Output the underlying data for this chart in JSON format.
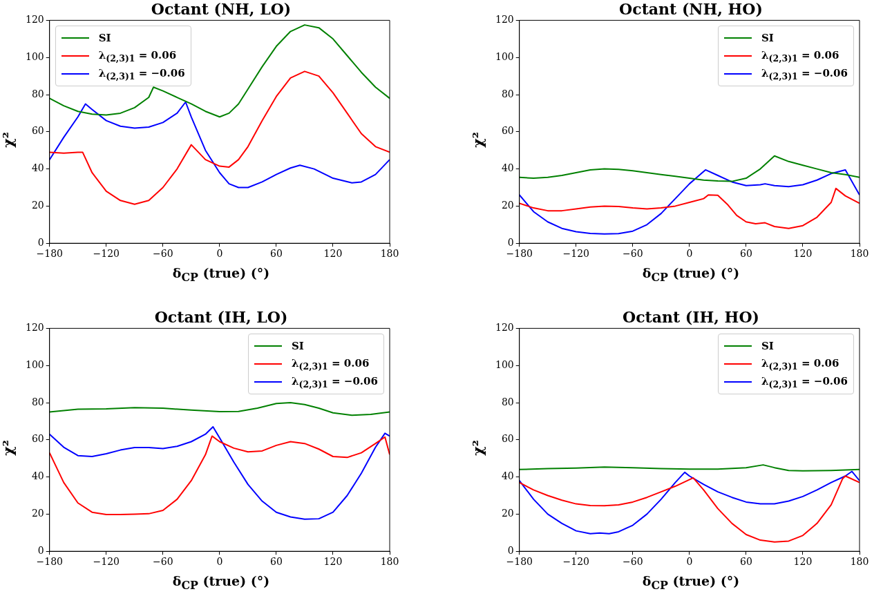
{
  "chart_data": [
    {
      "type": "line",
      "title": "Octant (NH, LO)",
      "xlabel": "δ$_{CP}$ (true) (°)",
      "ylabel": "χ²",
      "xlim": [
        -180,
        180
      ],
      "ylim": [
        0,
        120
      ],
      "xticks": [
        -180,
        -120,
        -60,
        0,
        60,
        120,
        180
      ],
      "yticks": [
        0,
        20,
        40,
        60,
        80,
        100,
        120
      ],
      "grid": false,
      "legend": "top left",
      "series": [
        {
          "name": "SI",
          "color": "#008000",
          "x": [
            -180,
            -165,
            -150,
            -135,
            -120,
            -105,
            -90,
            -75,
            -70,
            -60,
            -45,
            -30,
            -15,
            0,
            10,
            20,
            30,
            45,
            60,
            75,
            90,
            105,
            120,
            135,
            150,
            165,
            180
          ],
          "values": [
            78,
            74,
            71,
            69.5,
            69,
            70,
            73,
            78.5,
            84,
            82,
            78.5,
            75,
            71,
            68,
            70,
            75,
            83,
            95,
            106,
            114,
            117.5,
            116,
            110,
            101,
            92,
            84,
            78
          ]
        },
        {
          "name": "λ$_{(2,3)1}$ = 0.06",
          "color": "#ff0000",
          "x": [
            -180,
            -165,
            -150,
            -145,
            -135,
            -120,
            -105,
            -90,
            -75,
            -60,
            -45,
            -30,
            -15,
            0,
            10,
            20,
            30,
            45,
            60,
            75,
            90,
            105,
            120,
            135,
            150,
            165,
            180
          ],
          "values": [
            49,
            48.5,
            49,
            49,
            38,
            28,
            23,
            21,
            23,
            30,
            40,
            53,
            45,
            41.5,
            41,
            45,
            52,
            66,
            79,
            89,
            92.5,
            90,
            81,
            70,
            59,
            52,
            49
          ]
        },
        {
          "name": "λ$_{(2,3)1}$ = −0.06",
          "color": "#0000ff",
          "x": [
            -180,
            -165,
            -150,
            -142,
            -135,
            -120,
            -105,
            -90,
            -75,
            -60,
            -45,
            -36,
            -30,
            -15,
            0,
            10,
            20,
            30,
            45,
            60,
            75,
            85,
            100,
            120,
            140,
            150,
            165,
            180
          ],
          "values": [
            45,
            57,
            68,
            75,
            72,
            66,
            63,
            62,
            62.5,
            65,
            70,
            76,
            68,
            50,
            38,
            32,
            30,
            30,
            33,
            37,
            40.5,
            42,
            40,
            35,
            32.5,
            33,
            37,
            45
          ]
        }
      ]
    },
    {
      "type": "line",
      "title": "Octant (NH, HO)",
      "xlabel": "δ$_{CP}$ (true) (°)",
      "ylabel": "χ²",
      "xlim": [
        -180,
        180
      ],
      "ylim": [
        0,
        120
      ],
      "xticks": [
        -180,
        -120,
        -60,
        0,
        60,
        120,
        180
      ],
      "yticks": [
        0,
        20,
        40,
        60,
        80,
        100,
        120
      ],
      "grid": false,
      "legend": "top right",
      "series": [
        {
          "name": "SI",
          "color": "#008000",
          "x": [
            -180,
            -165,
            -150,
            -135,
            -120,
            -105,
            -90,
            -75,
            -60,
            -45,
            -30,
            -15,
            0,
            15,
            30,
            45,
            60,
            75,
            90,
            105,
            120,
            135,
            150,
            165,
            180
          ],
          "values": [
            35.5,
            35,
            35.5,
            36.5,
            38,
            39.5,
            40,
            39.8,
            39,
            38,
            37,
            36,
            35,
            34,
            33.5,
            33.3,
            35,
            40,
            47,
            44,
            42,
            40,
            38,
            37,
            35.5
          ]
        },
        {
          "name": "λ$_{(2,3)1}$ = 0.06",
          "color": "#ff0000",
          "x": [
            -180,
            -165,
            -150,
            -135,
            -120,
            -105,
            -90,
            -75,
            -60,
            -45,
            -30,
            -15,
            0,
            15,
            20,
            30,
            40,
            50,
            60,
            70,
            80,
            90,
            105,
            120,
            135,
            150,
            155,
            165,
            180
          ],
          "values": [
            21.5,
            19,
            17.5,
            17.5,
            18.5,
            19.5,
            20,
            19.8,
            19,
            18.5,
            19,
            20,
            22,
            24,
            26,
            25.8,
            21,
            15,
            11.5,
            10.5,
            11,
            9,
            8,
            9.5,
            14,
            22,
            29.5,
            25.5,
            21.5
          ]
        },
        {
          "name": "λ$_{(2,3)1}$ = −0.06",
          "color": "#0000ff",
          "x": [
            -180,
            -165,
            -150,
            -135,
            -120,
            -105,
            -90,
            -75,
            -60,
            -45,
            -30,
            -15,
            0,
            17,
            30,
            45,
            60,
            75,
            80,
            90,
            105,
            120,
            135,
            150,
            165,
            180
          ],
          "values": [
            26,
            17,
            11.5,
            8,
            6.2,
            5.3,
            5,
            5.2,
            6.5,
            10,
            16,
            24,
            32,
            39.5,
            36.5,
            33,
            31,
            31.5,
            32,
            31,
            30.5,
            31.5,
            34,
            37.5,
            39.5,
            26
          ]
        }
      ]
    },
    {
      "type": "line",
      "title": "Octant (IH, LO)",
      "xlabel": "δ$_{CP}$ (true) (°)",
      "ylabel": "χ²",
      "xlim": [
        -180,
        180
      ],
      "ylim": [
        0,
        120
      ],
      "xticks": [
        -180,
        -120,
        -60,
        0,
        60,
        120,
        180
      ],
      "yticks": [
        0,
        20,
        40,
        60,
        80,
        100,
        120
      ],
      "grid": false,
      "legend": "top right",
      "series": [
        {
          "name": "SI",
          "color": "#008000",
          "x": [
            -180,
            -150,
            -120,
            -90,
            -60,
            -30,
            0,
            20,
            40,
            60,
            75,
            90,
            105,
            120,
            140,
            160,
            180
          ],
          "values": [
            75,
            76.5,
            76.7,
            77.3,
            77,
            76,
            75.2,
            75.3,
            77,
            79.5,
            80,
            79,
            77,
            74.5,
            73.2,
            73.7,
            75
          ]
        },
        {
          "name": "λ$_{(2,3)1}$ = 0.06",
          "color": "#ff0000",
          "x": [
            -180,
            -165,
            -150,
            -135,
            -120,
            -105,
            -90,
            -75,
            -60,
            -45,
            -30,
            -15,
            -8,
            0,
            15,
            30,
            45,
            60,
            75,
            90,
            105,
            120,
            135,
            150,
            165,
            175,
            180
          ],
          "values": [
            53,
            37,
            26,
            21,
            19.8,
            19.8,
            20,
            20.2,
            22,
            28,
            38,
            52,
            62,
            59,
            55.5,
            53.5,
            54,
            57,
            59,
            58,
            55,
            51,
            50.5,
            53,
            58,
            61.5,
            52
          ]
        },
        {
          "name": "λ$_{(2,3)1}$ = −0.06",
          "color": "#0000ff",
          "x": [
            -180,
            -165,
            -150,
            -135,
            -120,
            -105,
            -90,
            -75,
            -60,
            -45,
            -30,
            -15,
            -7,
            0,
            15,
            30,
            45,
            60,
            75,
            90,
            105,
            120,
            135,
            150,
            165,
            175,
            180
          ],
          "values": [
            63,
            56,
            51.5,
            51,
            52.5,
            54.5,
            55.8,
            55.8,
            55.3,
            56.5,
            59,
            63,
            67,
            61,
            48,
            36,
            27,
            21,
            18.5,
            17.3,
            17.5,
            21,
            30,
            42,
            56,
            63.5,
            62
          ]
        }
      ]
    },
    {
      "type": "line",
      "title": "Octant (IH, HO)",
      "xlabel": "δ$_{CP}$ (true) (°)",
      "ylabel": "χ²",
      "xlim": [
        -180,
        180
      ],
      "ylim": [
        0,
        120
      ],
      "xticks": [
        -180,
        -120,
        -60,
        0,
        60,
        120,
        180
      ],
      "yticks": [
        0,
        20,
        40,
        60,
        80,
        100,
        120
      ],
      "grid": false,
      "legend": "top right",
      "series": [
        {
          "name": "SI",
          "color": "#008000",
          "x": [
            -180,
            -150,
            -120,
            -90,
            -60,
            -30,
            0,
            30,
            60,
            78,
            90,
            105,
            120,
            150,
            180
          ],
          "values": [
            44,
            44.5,
            44.8,
            45.3,
            45,
            44.5,
            44.2,
            44.2,
            45,
            46.5,
            45,
            43.5,
            43.3,
            43.5,
            44
          ]
        },
        {
          "name": "λ$_{(2,3)1}$ = 0.06",
          "color": "#ff0000",
          "x": [
            -180,
            -165,
            -150,
            -135,
            -120,
            -105,
            -90,
            -75,
            -60,
            -45,
            -30,
            -15,
            4,
            15,
            30,
            45,
            60,
            75,
            90,
            105,
            120,
            135,
            150,
            162,
            165,
            180
          ],
          "values": [
            37,
            33,
            30,
            27.5,
            25.5,
            24.6,
            24.5,
            25,
            26.5,
            29,
            32,
            35,
            39.5,
            33,
            23,
            15,
            9,
            6,
            5,
            5.5,
            8.5,
            15,
            25,
            39,
            40.5,
            37
          ]
        },
        {
          "name": "λ$_{(2,3)1}$ = −0.06",
          "color": "#0000ff",
          "x": [
            -180,
            -165,
            -150,
            -135,
            -120,
            -105,
            -95,
            -85,
            -75,
            -60,
            -45,
            -30,
            -15,
            -5,
            0,
            15,
            30,
            45,
            60,
            75,
            90,
            105,
            120,
            135,
            150,
            165,
            172,
            180
          ],
          "values": [
            38,
            28,
            20,
            15,
            11,
            9.5,
            9.8,
            9.5,
            10.5,
            14,
            20,
            28,
            37,
            42.5,
            40.5,
            36,
            32,
            29,
            26.5,
            25.5,
            25.5,
            27,
            29.5,
            33,
            37,
            40.5,
            43,
            38
          ]
        }
      ]
    }
  ]
}
